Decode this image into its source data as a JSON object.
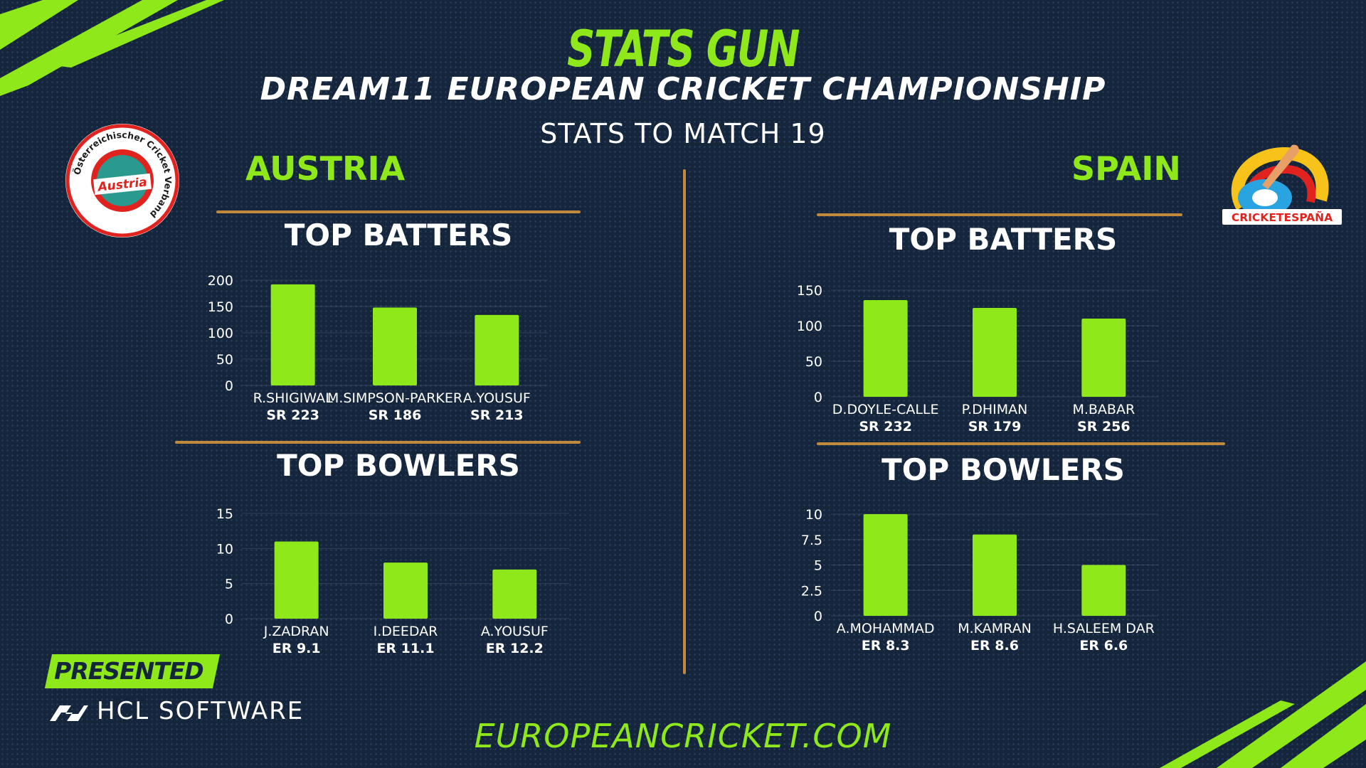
{
  "header": {
    "title": "STATS GUN",
    "subtitle": "DREAM11 EUROPEAN CRICKET CHAMPIONSHIP",
    "stats_line": "STATS TO MATCH 19"
  },
  "teams": {
    "left": {
      "name": "AUSTRIA",
      "logo_text": "Austria",
      "logo_ring_text": "Österreichischer Cricket Verband"
    },
    "right": {
      "name": "SPAIN",
      "logo_text": "CRICKETESPAÑA"
    }
  },
  "sections": {
    "batters": "TOP BATTERS",
    "bowlers": "TOP BOWLERS"
  },
  "footer": {
    "presented_by": "PRESENTED BY",
    "sponsor": "HCL SOFTWARE",
    "website": "EUROPEANCRICKET.COM"
  },
  "colors": {
    "accent": "#8ee81a",
    "background": "#15253c",
    "divider": "#c08a3a",
    "text": "#ffffff"
  },
  "chart_data": [
    {
      "id": "austria-batters",
      "type": "bar",
      "categories": [
        "R.SHIGIWAL",
        "M.SIMPSON-PARKER",
        "A.YOUSUF"
      ],
      "sublabels": [
        "SR 223",
        "SR 186",
        "SR 213"
      ],
      "values": [
        192,
        148,
        134
      ],
      "yticks": [
        0,
        50,
        100,
        150,
        200
      ],
      "ylim": [
        0,
        200
      ]
    },
    {
      "id": "austria-bowlers",
      "type": "bar",
      "categories": [
        "J.ZADRAN",
        "I.DEEDAR",
        "A.YOUSUF"
      ],
      "sublabels": [
        "ER 9.1",
        "ER 11.1",
        "ER 12.2"
      ],
      "values": [
        11,
        8,
        7
      ],
      "yticks": [
        0,
        5,
        10,
        15
      ],
      "ylim": [
        0,
        15
      ]
    },
    {
      "id": "spain-batters",
      "type": "bar",
      "categories": [
        "D.DOYLE-CALLE",
        "P.DHIMAN",
        "M.BABAR"
      ],
      "sublabels": [
        "SR 232",
        "SR 179",
        "SR 256"
      ],
      "values": [
        136,
        125,
        110
      ],
      "yticks": [
        0,
        50,
        100,
        150
      ],
      "ylim": [
        0,
        150
      ]
    },
    {
      "id": "spain-bowlers",
      "type": "bar",
      "categories": [
        "A.MOHAMMAD",
        "M.KAMRAN",
        "H.SALEEM DAR"
      ],
      "sublabels": [
        "ER 8.3",
        "ER 8.6",
        "ER 6.6"
      ],
      "values": [
        10,
        8,
        5
      ],
      "yticks": [
        0,
        2.5,
        5,
        7.5,
        10
      ],
      "ylim": [
        0,
        10
      ]
    }
  ]
}
